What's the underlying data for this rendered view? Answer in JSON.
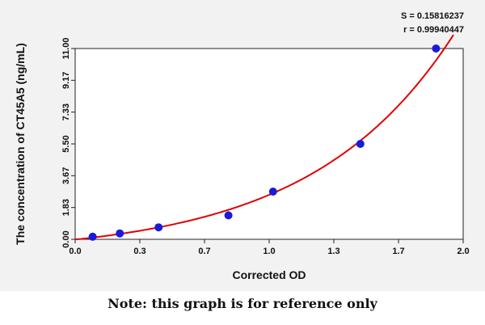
{
  "chart_data": {
    "type": "scatter",
    "title": "",
    "xlabel": "Corrected OD",
    "ylabel": "The concentration of CT45A5 (ng/mL)",
    "xlim": [
      0.0,
      2.0
    ],
    "ylim": [
      0.0,
      11.0
    ],
    "x_ticks": [
      "0.0",
      "0.3",
      "0.7",
      "1.0",
      "1.3",
      "1.7",
      "2.0"
    ],
    "y_ticks": [
      "0.00",
      "1.83",
      "3.67",
      "5.50",
      "7.33",
      "9.17",
      "11.00"
    ],
    "grid": false,
    "series": [
      {
        "points": [
          {
            "x": 0.09,
            "y": 0.15
          },
          {
            "x": 0.23,
            "y": 0.34
          },
          {
            "x": 0.43,
            "y": 0.69
          },
          {
            "x": 0.79,
            "y": 1.38
          },
          {
            "x": 1.02,
            "y": 2.75
          },
          {
            "x": 1.47,
            "y": 5.5
          },
          {
            "x": 1.86,
            "y": 11.0
          }
        ],
        "point_color": "#1a1adc"
      }
    ],
    "fit_curve_color": "#e00000",
    "annotations": {
      "s_value": "S = 0.15816237",
      "r_value": "r = 0.99940447"
    }
  },
  "note": "Note: this graph is for reference only"
}
